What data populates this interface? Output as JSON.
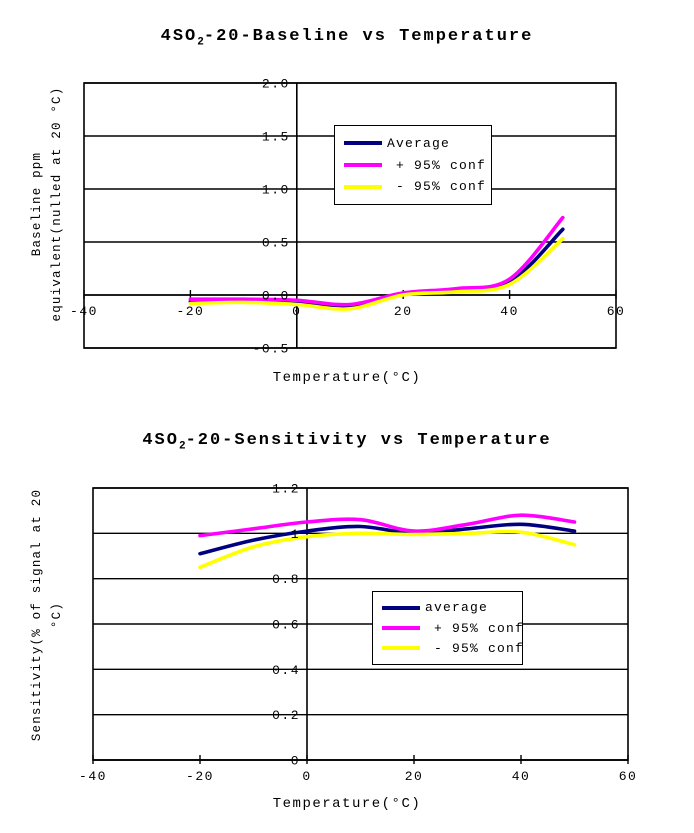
{
  "colors": {
    "axis": "#000000",
    "background": "#ffffff"
  },
  "chart_data": [
    {
      "type": "line",
      "title": "4SO2-20-Baseline vs Temperature",
      "title_parts": {
        "pre": "4SO",
        "sub": "2",
        "post": "-20-Baseline vs Temperature"
      },
      "xlabel": "Temperature(°C)",
      "ylabel_lines": [
        "Baseline ppm",
        "equivalent(nulled at 20 °C)"
      ],
      "xlim": [
        -40,
        60
      ],
      "ylim": [
        -0.5,
        2.0
      ],
      "xtick_labels": [
        "-40",
        "-20",
        "0",
        "20",
        "40",
        "60"
      ],
      "ytick_labels": [
        "2.0",
        "1.5",
        "1.0",
        "0.5",
        "0.0",
        "-0.5"
      ],
      "grid": "horizontal-major",
      "legend_position": "upper-center-inside",
      "x": [
        -20,
        -10,
        0,
        10,
        20,
        30,
        40,
        50
      ],
      "series": [
        {
          "id": "average",
          "name": "Average",
          "legend_label": "Average",
          "color": "#000080",
          "values": [
            -0.06,
            -0.05,
            -0.07,
            -0.11,
            0.01,
            0.04,
            0.12,
            0.62
          ]
        },
        {
          "id": "plus-95-conf",
          "name": "+ 95% conf",
          "legend_label": " + 95% conf",
          "color": "#ff00ff",
          "values": [
            -0.04,
            -0.04,
            -0.05,
            -0.09,
            0.02,
            0.06,
            0.15,
            0.73
          ]
        },
        {
          "id": "minus-95-conf",
          "name": "- 95% conf",
          "legend_label": " - 95% conf",
          "color": "#ffff00",
          "values": [
            -0.08,
            -0.07,
            -0.09,
            -0.13,
            0.0,
            0.03,
            0.1,
            0.53
          ]
        }
      ]
    },
    {
      "type": "line",
      "title": "4SO2-20-Sensitivity vs Temperature",
      "title_parts": {
        "pre": "4SO",
        "sub": "2",
        "post": "-20-Sensitivity vs Temperature"
      },
      "xlabel": "Temperature(°C)",
      "ylabel_lines": [
        "Sensitivity(% of signal at 20",
        "°C)"
      ],
      "xlim": [
        -40,
        60
      ],
      "ylim": [
        0,
        1.2
      ],
      "xtick_labels": [
        "-40",
        "-20",
        "0",
        "20",
        "40",
        "60"
      ],
      "ytick_labels": [
        "1.2",
        "1",
        "0.8",
        "0.6",
        "0.4",
        "0.2",
        "0"
      ],
      "grid": "horizontal-major",
      "legend_position": "middle-right-inside",
      "x": [
        -20,
        -10,
        0,
        10,
        20,
        30,
        40,
        50
      ],
      "series": [
        {
          "id": "average",
          "name": "average",
          "legend_label": "average",
          "color": "#000080",
          "values": [
            0.91,
            0.97,
            1.01,
            1.03,
            1.0,
            1.02,
            1.04,
            1.01
          ]
        },
        {
          "id": "plus-95-conf",
          "name": "+ 95% conf",
          "legend_label": " + 95% conf",
          "color": "#ff00ff",
          "values": [
            0.99,
            1.02,
            1.05,
            1.06,
            1.01,
            1.04,
            1.08,
            1.05
          ]
        },
        {
          "id": "minus-95-conf",
          "name": "- 95% conf",
          "legend_label": " - 95% conf",
          "color": "#ffff00",
          "values": [
            0.85,
            0.94,
            0.985,
            1.0,
            0.995,
            1.0,
            1.005,
            0.95
          ]
        }
      ]
    }
  ]
}
